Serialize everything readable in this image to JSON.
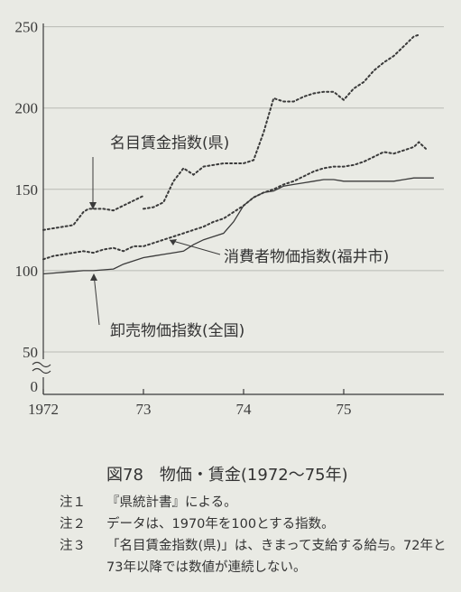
{
  "chart_data": {
    "type": "line",
    "title": "",
    "xlabel": "",
    "ylabel": "",
    "x_ticks": [
      "1972",
      "73",
      "74",
      "75"
    ],
    "y_ticks": [
      "250",
      "200",
      "150",
      "100",
      "50",
      "0"
    ],
    "y_break": true,
    "grid": "horizontal",
    "xlim": [
      1972,
      1976
    ],
    "ylim": [
      0,
      250
    ],
    "series": [
      {
        "name": "名目賃金指数(県)",
        "style": "dotted",
        "segments": [
          {
            "x": [
              1972.0,
              1972.1,
              1972.2,
              1972.3,
              1972.4,
              1972.45,
              1972.5,
              1972.6,
              1972.7,
              1972.8,
              1972.9,
              1973.0
            ],
            "y": [
              125,
              126,
              127,
              128,
              136,
              138,
              138,
              138,
              137,
              140,
              143,
              146
            ]
          },
          {
            "x": [
              1973.0,
              1973.1,
              1973.2,
              1973.3,
              1973.4,
              1973.5,
              1973.6,
              1973.7,
              1973.8,
              1973.9,
              1974.0,
              1974.1,
              1974.2,
              1974.3,
              1974.4,
              1974.5,
              1974.6,
              1974.7,
              1974.8,
              1974.9,
              1975.0,
              1975.1,
              1975.2,
              1975.3,
              1975.4,
              1975.5,
              1975.6,
              1975.7,
              1975.75
            ],
            "y": [
              138,
              139,
              142,
              155,
              163,
              159,
              164,
              165,
              166,
              166,
              166,
              168,
              185,
              206,
              204,
              204,
              207,
              209,
              210,
              210,
              205,
              212,
              216,
              223,
              228,
              232,
              238,
              244,
              245
            ]
          }
        ]
      },
      {
        "name": "消費者物価指数(福井市)",
        "style": "dotted",
        "segments": [
          {
            "x": [
              1972.0,
              1972.1,
              1972.2,
              1972.3,
              1972.4,
              1972.5,
              1972.6,
              1972.7,
              1972.8,
              1972.9,
              1973.0,
              1973.1,
              1973.2,
              1973.3,
              1973.4,
              1973.5,
              1973.6,
              1973.7,
              1973.8,
              1973.9,
              1974.0,
              1974.1,
              1974.2,
              1974.3,
              1974.4,
              1974.5,
              1974.6,
              1974.7,
              1974.8,
              1974.9,
              1975.0,
              1975.1,
              1975.2,
              1975.3,
              1975.4,
              1975.5,
              1975.6,
              1975.7,
              1975.75,
              1975.82
            ],
            "y": [
              107,
              109,
              110,
              111,
              112,
              111,
              113,
              114,
              112,
              115,
              115,
              117,
              119,
              121,
              123,
              125,
              127,
              130,
              132,
              136,
              140,
              145,
              148,
              150,
              153,
              155,
              158,
              161,
              163,
              164,
              164,
              165,
              167,
              170,
              173,
              172,
              174,
              176,
              179,
              175
            ]
          }
        ]
      },
      {
        "name": "卸売物価指数(全国)",
        "style": "solid",
        "segments": [
          {
            "x": [
              1972.0,
              1972.1,
              1972.2,
              1972.3,
              1972.4,
              1972.5,
              1972.6,
              1972.7,
              1972.8,
              1972.9,
              1973.0,
              1973.1,
              1973.2,
              1973.3,
              1973.4,
              1973.5,
              1973.6,
              1973.7,
              1973.8,
              1973.9,
              1974.0,
              1974.1,
              1974.2,
              1974.3,
              1974.4,
              1974.5,
              1974.6,
              1974.7,
              1974.8,
              1974.9,
              1975.0,
              1975.1,
              1975.2,
              1975.3,
              1975.4,
              1975.5,
              1975.6,
              1975.7,
              1975.8,
              1975.9
            ],
            "y": [
              98,
              98.5,
              99,
              99.5,
              100,
              100,
              100.5,
              101,
              104,
              106,
              108,
              109,
              110,
              111,
              112,
              116,
              119,
              121,
              123,
              130,
              140,
              145,
              148,
              149,
              152,
              153,
              154,
              155,
              156,
              156,
              155,
              155,
              155,
              155,
              155,
              155,
              156,
              157,
              157,
              157
            ]
          }
        ]
      }
    ]
  },
  "caption": "図78　物価・賃金(1972〜75年)",
  "notes": [
    {
      "key": "注１",
      "text": "『県統計書』による。"
    },
    {
      "key": "注２",
      "text": "データは、1970年を100とする指数。"
    },
    {
      "key": "注３",
      "text": "「名目賃金指数(県)」は、きまって支給する給与。72年と73年以降では数値が連続しない。"
    }
  ],
  "colors": {
    "background": "#e9eae4",
    "line": "#3a3a3a",
    "grid": "#b9bab4"
  }
}
